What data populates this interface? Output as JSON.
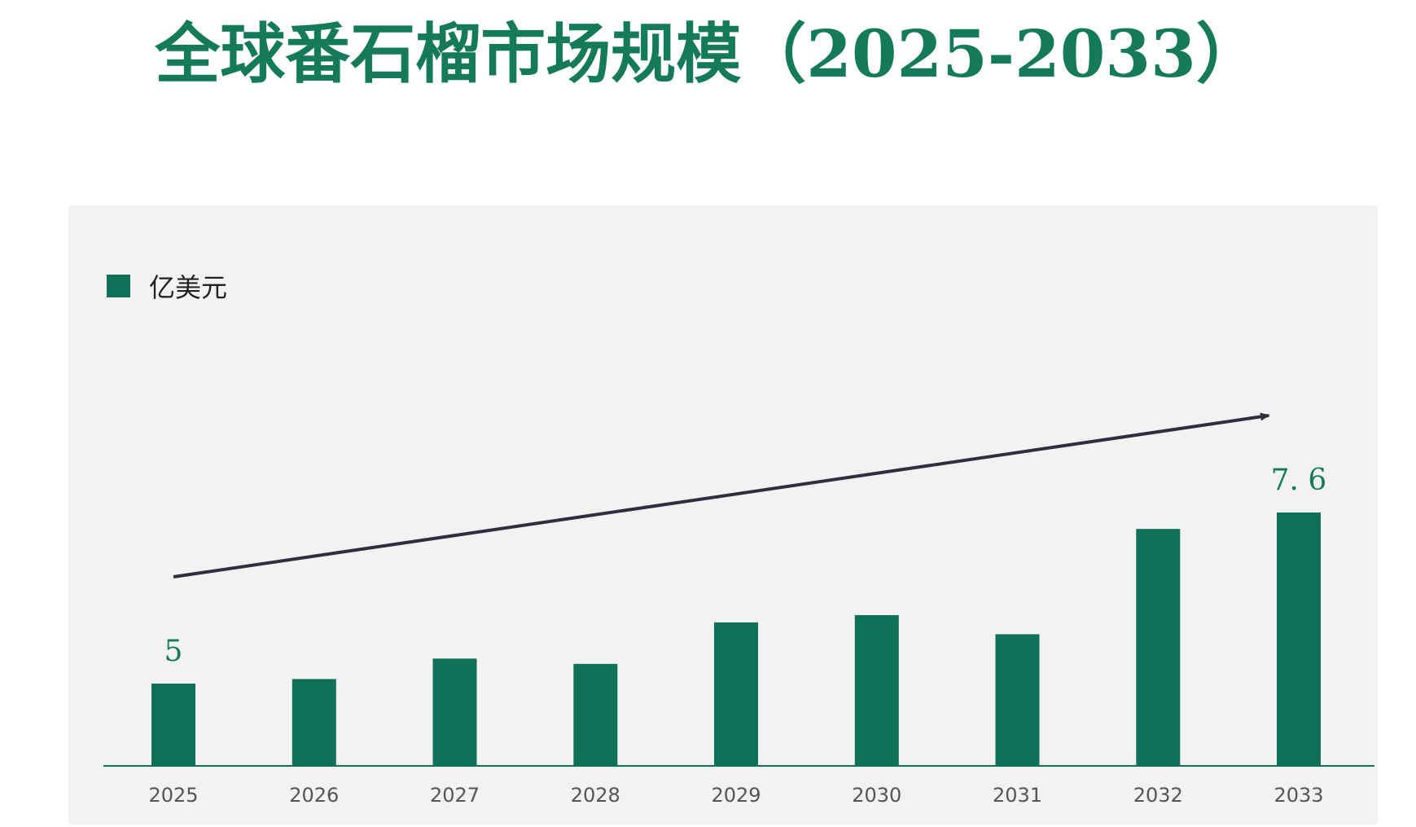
{
  "chart_data": {
    "type": "bar",
    "title": "全球番石榴市场规模（2025-2033）",
    "series_name": "亿美元",
    "categories": [
      "2025",
      "2026",
      "2027",
      "2028",
      "2029",
      "2030",
      "2031",
      "2032",
      "2033"
    ],
    "values": [
      5.0,
      5.07,
      5.38,
      5.3,
      5.93,
      6.04,
      5.75,
      7.35,
      7.6
    ],
    "data_labels": [
      {
        "index": 0,
        "text": "5"
      },
      {
        "index": 8,
        "text": "7. 6"
      }
    ],
    "ylim": [
      3.75,
      7.6
    ],
    "xlabel": "",
    "ylabel": "",
    "legend_position": "top-left",
    "trend_arrow": true,
    "grid": false
  },
  "colors": {
    "bar": "#117058",
    "title": "#147a5a",
    "plot_background": "#f2f2f2",
    "axis": "#117058",
    "arrow": "#2e2e3e"
  }
}
